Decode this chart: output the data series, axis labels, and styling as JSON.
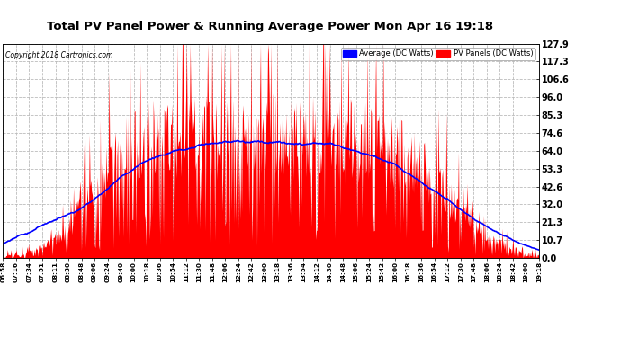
{
  "title": "Total PV Panel Power & Running Average Power Mon Apr 16 19:18",
  "copyright": "Copyright 2018 Cartronics.com",
  "legend_avg": "Average (DC Watts)",
  "legend_pv": "PV Panels (DC Watts)",
  "ylabel_right_ticks": [
    0.0,
    10.7,
    21.3,
    32.0,
    42.6,
    53.3,
    64.0,
    74.6,
    85.3,
    96.0,
    106.6,
    117.3,
    127.9
  ],
  "y_max": 127.9,
  "y_min": 0.0,
  "bg_color": "#ffffff",
  "plot_bg_color": "#ffffff",
  "grid_color": "#bbbbbb",
  "pv_color": "#ff0000",
  "avg_color": "#0000ff",
  "x_labels": [
    "06:58",
    "07:16",
    "07:34",
    "07:51",
    "08:11",
    "08:30",
    "08:48",
    "09:06",
    "09:24",
    "09:40",
    "10:00",
    "10:18",
    "10:36",
    "10:54",
    "11:12",
    "11:30",
    "11:48",
    "12:06",
    "12:24",
    "12:42",
    "13:00",
    "13:18",
    "13:36",
    "13:54",
    "14:12",
    "14:30",
    "14:48",
    "15:06",
    "15:24",
    "15:42",
    "16:00",
    "16:18",
    "16:36",
    "16:54",
    "17:12",
    "17:30",
    "17:48",
    "18:06",
    "18:24",
    "18:42",
    "19:00",
    "19:18"
  ]
}
